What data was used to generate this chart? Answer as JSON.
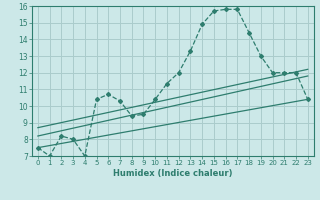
{
  "xlabel": "Humidex (Indice chaleur)",
  "ylabel": "",
  "bg_color": "#cce8e8",
  "grid_color": "#aacccc",
  "line_color": "#2e7d6e",
  "xlim": [
    -0.5,
    23.5
  ],
  "ylim": [
    7,
    16
  ],
  "yticks": [
    7,
    8,
    9,
    10,
    11,
    12,
    13,
    14,
    15,
    16
  ],
  "xticks": [
    0,
    1,
    2,
    3,
    4,
    5,
    6,
    7,
    8,
    9,
    10,
    11,
    12,
    13,
    14,
    15,
    16,
    17,
    18,
    19,
    20,
    21,
    22,
    23
  ],
  "series1_x": [
    0,
    1,
    2,
    3,
    4,
    5,
    6,
    7,
    8,
    9,
    10,
    11,
    12,
    13,
    14,
    15,
    16,
    17,
    18,
    19,
    20,
    21,
    22,
    23
  ],
  "series1_y": [
    7.5,
    7.0,
    8.2,
    8.0,
    7.0,
    10.4,
    10.7,
    10.3,
    9.4,
    9.5,
    10.4,
    11.35,
    12.0,
    13.3,
    14.9,
    15.7,
    15.8,
    15.8,
    14.4,
    13.0,
    12.0,
    12.0,
    12.0,
    10.4
  ],
  "series2_x": [
    0,
    23
  ],
  "series2_y": [
    7.5,
    10.4
  ],
  "series3_x": [
    0,
    23
  ],
  "series3_y": [
    8.2,
    11.8
  ],
  "series4_x": [
    0,
    23
  ],
  "series4_y": [
    8.7,
    12.2
  ]
}
